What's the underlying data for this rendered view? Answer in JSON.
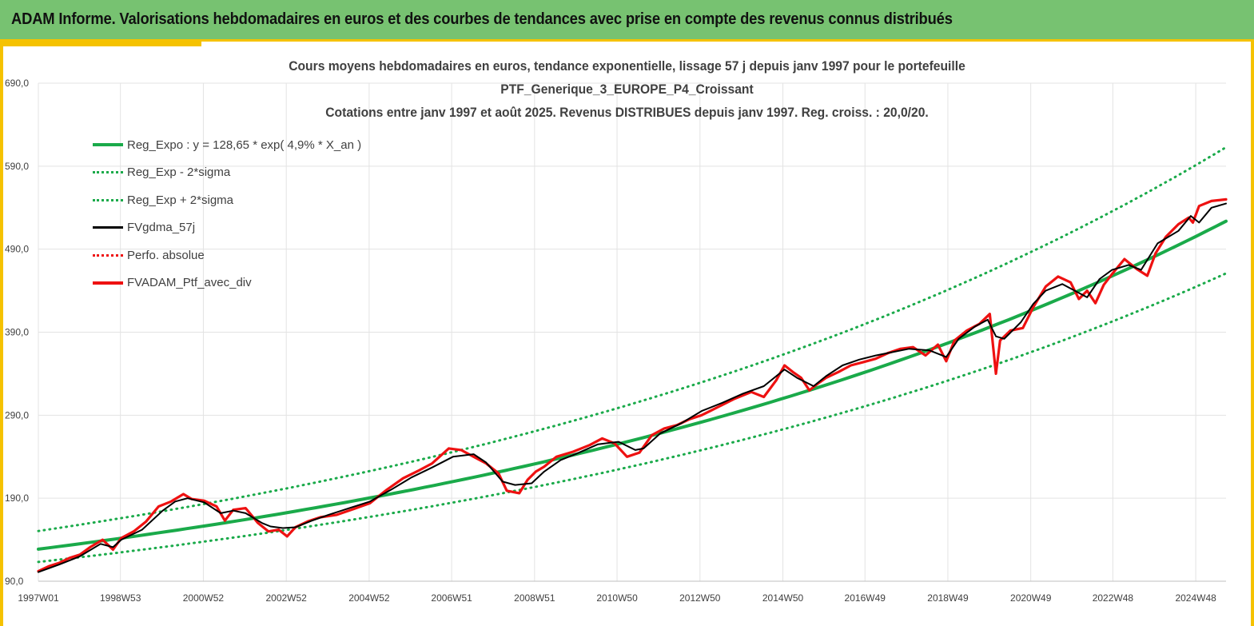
{
  "banner": {
    "title": "ADAM Informe. Valorisations hebdomadaires en euros et des courbes de tendances avec prise en compte des revenus connus distribués"
  },
  "chart_data": {
    "type": "line",
    "title_lines": [
      "Cours moyens hebdomadaires  en euros, tendance exponentielle, lissage 57 j depuis janv 1997 pour le portefeuille",
      "PTF_Generique_3_EUROPE_P4_Croissant",
      "Cotations entre janv 1997 et août 2025. Revenus DISTRIBUES depuis janv 1997. Reg. croiss. : 20,0/20."
    ],
    "xlabel": "",
    "ylabel": "",
    "ylim": [
      90,
      690
    ],
    "xlim": [
      1997.0,
      2025.65
    ],
    "y_ticks": [
      90,
      190,
      290,
      390,
      490,
      590,
      690
    ],
    "y_tick_labels": [
      "90,0",
      "190,0",
      "290,0",
      "390,0",
      "490,0",
      "590,0",
      "690,0"
    ],
    "x_tick_positions": [
      1997.0,
      1998.98,
      2000.98,
      2002.98,
      2004.98,
      2006.97,
      2008.97,
      2010.96,
      2012.96,
      2014.96,
      2016.94,
      2018.94,
      2020.94,
      2022.92,
      2024.92
    ],
    "x_tick_labels": [
      "1997W01",
      "1998W53",
      "2000W52",
      "2002W52",
      "2004W52",
      "2006W51",
      "2008W51",
      "2010W50",
      "2012W50",
      "2014W50",
      "2016W49",
      "2018W49",
      "2020W49",
      "2022W48",
      "2024W48"
    ],
    "grid": true,
    "legend_position": "top-left",
    "regression": {
      "a": 128.65,
      "rate": 0.049,
      "sigma_band_factor_low": 0.88,
      "sigma_band_factor_high": 1.17
    },
    "series": [
      {
        "name": "Reg_Expo : y = 128,65 * exp( 4,9% *  X_an )",
        "color": "#1aaa4a",
        "style": "solid",
        "x": [
          1997.0,
          1999.0,
          2001.0,
          2003.0,
          2005.0,
          2007.0,
          2009.0,
          2011.0,
          2013.0,
          2015.0,
          2017.0,
          2019.0,
          2021.0,
          2023.0,
          2025.65
        ],
        "values": [
          128.7,
          141.9,
          156.5,
          172.7,
          190.4,
          210.0,
          231.6,
          255.5,
          281.8,
          310.8,
          342.8,
          378.1,
          417.0,
          460.0,
          522.1
        ]
      },
      {
        "name": "Reg_Exp - 2*sigma",
        "color": "#1aaa4a",
        "style": "dotted",
        "x": [
          1997.0,
          1999.0,
          2001.0,
          2003.0,
          2005.0,
          2007.0,
          2009.0,
          2011.0,
          2013.0,
          2015.0,
          2017.0,
          2019.0,
          2021.0,
          2023.0,
          2025.65
        ],
        "values": [
          112,
          124,
          136,
          149,
          164,
          181,
          200,
          221,
          244,
          270,
          298,
          329,
          363,
          400,
          452
        ]
      },
      {
        "name": "Reg_Exp + 2*sigma",
        "color": "#1aaa4a",
        "style": "dotted",
        "x": [
          1997.0,
          1999.0,
          2001.0,
          2003.0,
          2005.0,
          2007.0,
          2009.0,
          2011.0,
          2013.0,
          2015.0,
          2017.0,
          2019.0,
          2021.0,
          2023.0,
          2025.65
        ],
        "values": [
          151,
          166,
          183,
          202,
          223,
          246,
          271,
          299,
          330,
          364,
          402,
          443,
          489,
          539,
          611
        ]
      },
      {
        "name": "FVgdma_57j",
        "color": "#000000",
        "style": "solid",
        "x": [
          1997.0,
          1997.5,
          1998.0,
          1998.5,
          1998.8,
          1999.0,
          1999.5,
          2000.0,
          2000.3,
          2000.6,
          2001.0,
          2001.4,
          2001.7,
          2002.0,
          2002.4,
          2002.6,
          2002.9,
          2003.2,
          2003.6,
          2004.0,
          2004.5,
          2005.0,
          2005.5,
          2006.0,
          2006.5,
          2007.0,
          2007.5,
          2007.8,
          2008.2,
          2008.5,
          2008.9,
          2009.2,
          2009.6,
          2010.0,
          2010.5,
          2011.0,
          2011.4,
          2011.6,
          2012.0,
          2012.5,
          2013.0,
          2013.5,
          2014.0,
          2014.5,
          2015.0,
          2015.3,
          2015.7,
          2016.0,
          2016.4,
          2016.8,
          2017.2,
          2017.5,
          2018.0,
          2018.5,
          2018.9,
          2019.2,
          2019.6,
          2019.9,
          2020.1,
          2020.3,
          2020.7,
          2021.0,
          2021.3,
          2021.7,
          2022.0,
          2022.3,
          2022.6,
          2022.9,
          2023.3,
          2023.6,
          2024.0,
          2024.5,
          2024.8,
          2025.0,
          2025.3,
          2025.65
        ],
        "values": [
          101,
          110,
          120,
          135,
          131,
          140,
          152,
          175,
          186,
          190,
          185,
          172,
          175,
          172,
          160,
          156,
          154,
          155,
          163,
          170,
          178,
          186,
          200,
          215,
          227,
          240,
          243,
          233,
          210,
          206,
          208,
          222,
          236,
          244,
          255,
          258,
          248,
          250,
          268,
          280,
          295,
          305,
          316,
          325,
          345,
          335,
          325,
          337,
          350,
          357,
          362,
          365,
          370,
          368,
          360,
          382,
          397,
          405,
          385,
          382,
          402,
          424,
          440,
          448,
          440,
          432,
          454,
          465,
          471,
          465,
          497,
          512,
          530,
          522,
          540,
          545
        ]
      },
      {
        "name": "Perfo. absolue",
        "color": "#ee1111",
        "style": "dotted",
        "x": [],
        "values": []
      },
      {
        "name": "FVADAM_Ptf_avec_div",
        "color": "#ee1111",
        "style": "solid",
        "x": [
          1997.0,
          1997.25,
          1997.5,
          1997.75,
          1998.0,
          1998.25,
          1998.55,
          1998.8,
          1999.0,
          1999.3,
          1999.6,
          1999.9,
          2000.2,
          2000.5,
          2000.7,
          2001.0,
          2001.3,
          2001.5,
          2001.7,
          2002.0,
          2002.3,
          2002.55,
          2002.8,
          2003.0,
          2003.2,
          2003.5,
          2003.8,
          2004.2,
          2004.6,
          2005.0,
          2005.4,
          2005.8,
          2006.2,
          2006.5,
          2006.9,
          2007.2,
          2007.5,
          2007.8,
          2008.1,
          2008.3,
          2008.6,
          2008.8,
          2009.0,
          2009.2,
          2009.5,
          2009.9,
          2010.3,
          2010.6,
          2010.9,
          2011.2,
          2011.5,
          2011.8,
          2012.1,
          2012.4,
          2012.7,
          2013.0,
          2013.4,
          2013.8,
          2014.2,
          2014.5,
          2014.8,
          2015.0,
          2015.2,
          2015.4,
          2015.6,
          2015.8,
          2016.0,
          2016.3,
          2016.6,
          2016.9,
          2017.2,
          2017.5,
          2017.8,
          2018.1,
          2018.4,
          2018.7,
          2018.9,
          2019.1,
          2019.4,
          2019.7,
          2019.95,
          2020.1,
          2020.2,
          2020.45,
          2020.75,
          2021.0,
          2021.3,
          2021.6,
          2021.9,
          2022.1,
          2022.3,
          2022.5,
          2022.7,
          2022.9,
          2023.2,
          2023.5,
          2023.75,
          2023.95,
          2024.2,
          2024.5,
          2024.75,
          2024.85,
          2025.0,
          2025.3,
          2025.65
        ],
        "values": [
          102,
          108,
          112,
          118,
          122,
          131,
          140,
          128,
          142,
          150,
          162,
          180,
          186,
          195,
          189,
          187,
          180,
          163,
          176,
          178,
          160,
          150,
          152,
          144,
          155,
          162,
          167,
          170,
          177,
          184,
          200,
          214,
          224,
          232,
          250,
          248,
          240,
          232,
          220,
          199,
          196,
          212,
          222,
          228,
          240,
          246,
          254,
          262,
          256,
          240,
          245,
          266,
          274,
          278,
          285,
          290,
          300,
          310,
          318,
          312,
          332,
          350,
          342,
          335,
          320,
          328,
          335,
          342,
          350,
          354,
          358,
          365,
          370,
          372,
          362,
          375,
          355,
          380,
          392,
          400,
          412,
          340,
          380,
          392,
          395,
          420,
          445,
          457,
          450,
          430,
          440,
          425,
          447,
          460,
          478,
          466,
          458,
          485,
          505,
          520,
          528,
          522,
          542,
          548,
          550
        ]
      }
    ]
  }
}
